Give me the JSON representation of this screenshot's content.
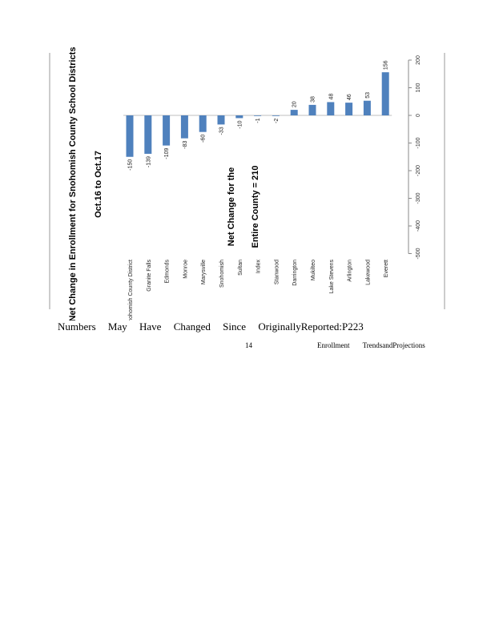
{
  "chart_data": {
    "type": "bar",
    "orientation": "rotated-90",
    "title": "Net Change in Enrollment for Snohomish County School Districts",
    "subtitle": "Oct.16 to Oct.17",
    "annotation": [
      "Net Change for the",
      "Entire County = 210"
    ],
    "categories": [
      "Snohomish County District",
      "Granite Falls",
      "Edmonds",
      "Monroe",
      "Marysville",
      "Snohomish",
      "Sultan",
      "Index",
      "Stanwood",
      "Darrington",
      "Mukilteo",
      "Lake Stevens",
      "Arlington",
      "Lakewood",
      "Everett"
    ],
    "values": [
      -150,
      -139,
      -109,
      -83,
      -60,
      -33,
      -10,
      -1,
      -2,
      20,
      38,
      48,
      46,
      53,
      156
    ],
    "value_labels": [
      "-150",
      "-139",
      "-109",
      "-83",
      "-60",
      "-33",
      "-10",
      "-1",
      "-2",
      "20",
      "38",
      "48",
      "46",
      "53",
      "156"
    ],
    "ylim": [
      -500,
      200
    ],
    "y_ticks": [
      200,
      100,
      0,
      -100,
      -200,
      -300,
      -400,
      -500
    ],
    "y_tick_labels": [
      "200",
      "100",
      "0",
      "-100",
      "-200",
      "-300",
      "-400",
      "-500"
    ],
    "bar_color": "#4F81BD",
    "grid": false,
    "legend": "none"
  },
  "footer": {
    "words": [
      "Numbers",
      "May",
      "Have",
      "Changed",
      "Since",
      "OriginallyReported:P223"
    ],
    "page_number": "14",
    "document_name": [
      "Enrollment",
      "TrendsandProjections"
    ]
  }
}
